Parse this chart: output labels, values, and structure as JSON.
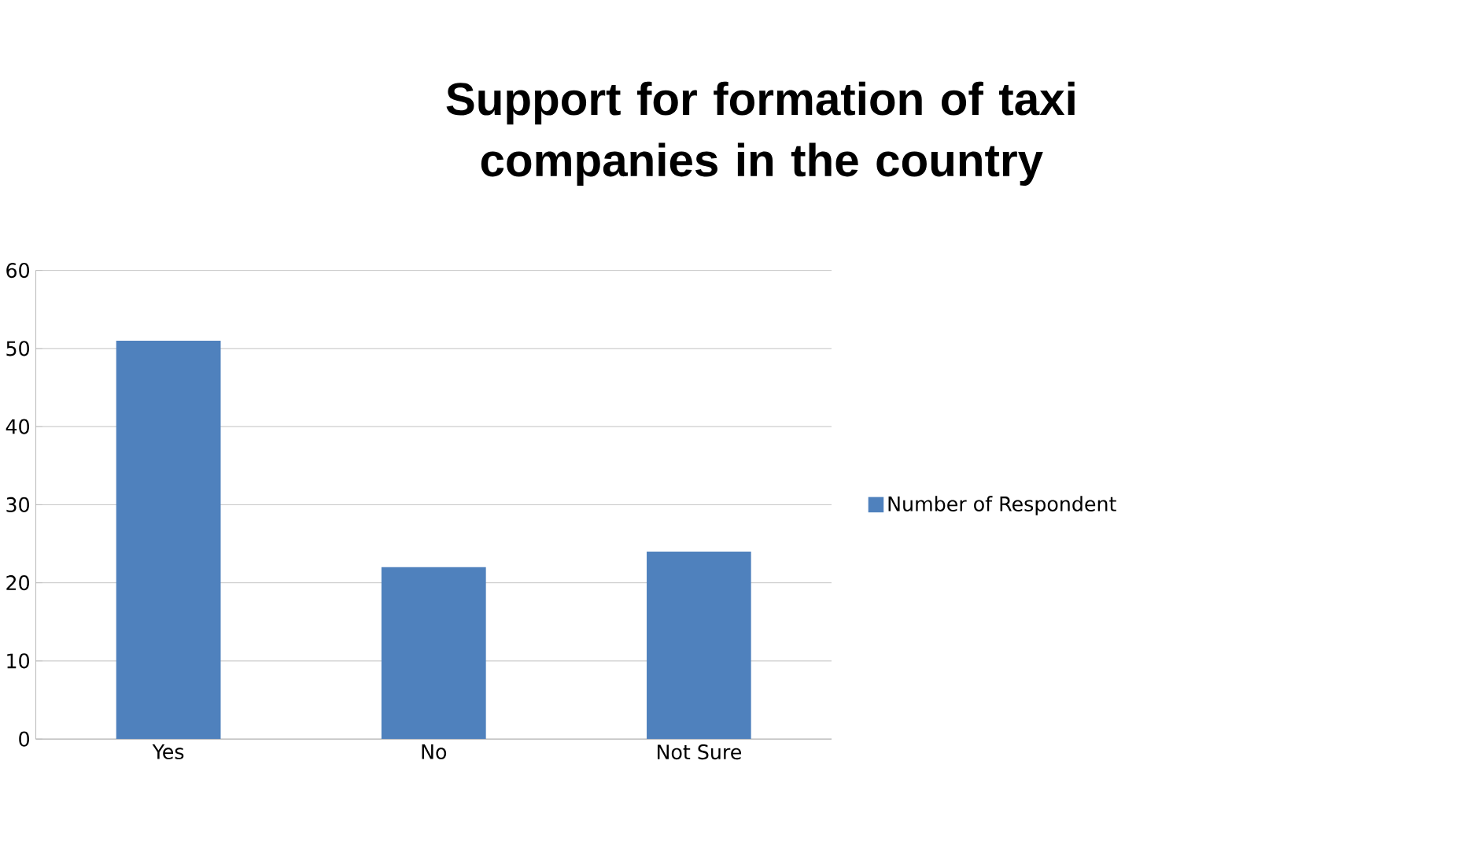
{
  "chart_data": {
    "type": "bar",
    "title": "Support for formation of taxi companies in the country",
    "categories": [
      "Yes",
      "No",
      "Not Sure"
    ],
    "series": [
      {
        "name": "Number of Respondent",
        "color": "#4f81bd",
        "values": [
          51,
          22,
          24
        ]
      }
    ],
    "ylim": [
      0,
      60
    ],
    "yticks": [
      0,
      10,
      20,
      30,
      40,
      50,
      60
    ],
    "grid": "y",
    "legend": "right"
  }
}
